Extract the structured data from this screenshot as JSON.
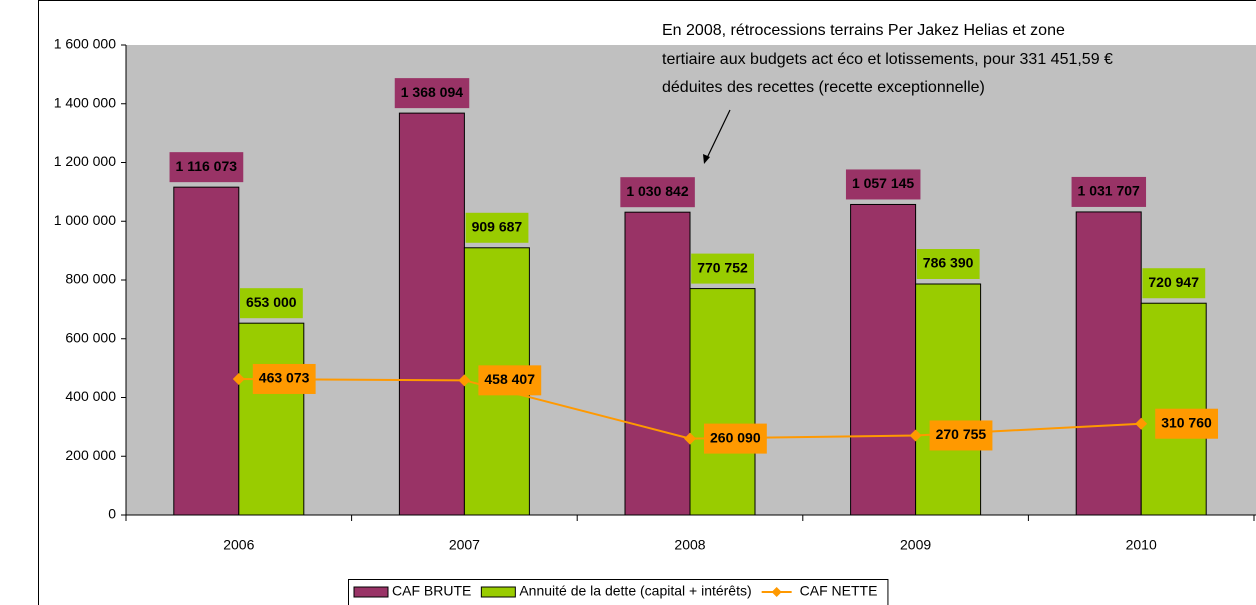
{
  "chart_data": {
    "type": "bar",
    "categories": [
      "2006",
      "2007",
      "2008",
      "2009",
      "2010"
    ],
    "series": [
      {
        "name": "CAF BRUTE",
        "color": "#993366",
        "type": "bar",
        "values": [
          1116073,
          1368094,
          1030842,
          1057145,
          1031707
        ],
        "value_labels": [
          "1 116 073",
          "1 368 094",
          "1 030 842",
          "1 057 145",
          "1 031 707"
        ]
      },
      {
        "name": "Annuité de la dette (capital + intérêts)",
        "color": "#99cc00",
        "type": "bar",
        "values": [
          653000,
          909687,
          770752,
          786390,
          720947
        ],
        "value_labels": [
          "653 000",
          "909 687",
          "770 752",
          "786 390",
          "720 947"
        ]
      },
      {
        "name": "CAF NETTE",
        "color": "#ff9900",
        "type": "line",
        "values": [
          463073,
          458407,
          260090,
          270755,
          310760
        ],
        "value_labels": [
          "463 073",
          "458 407",
          "260 090",
          "270 755",
          "310 760"
        ]
      }
    ],
    "ylim": [
      0,
      1600000
    ],
    "yticks": [
      {
        "value": 0,
        "label": "0"
      },
      {
        "value": 200000,
        "label": "200 000"
      },
      {
        "value": 400000,
        "label": "400 000"
      },
      {
        "value": 600000,
        "label": "600 000"
      },
      {
        "value": 800000,
        "label": "800 000"
      },
      {
        "value": 1000000,
        "label": "1 000 000"
      },
      {
        "value": 1200000,
        "label": "1 200 000"
      },
      {
        "value": 1400000,
        "label": "1 400 000"
      },
      {
        "value": 1600000,
        "label": "1 600 000"
      }
    ],
    "grid": false,
    "legend": "bottom",
    "annotation": [
      "En 2008, rétrocessions terrains Per Jakez Helias et zone",
      "tertiaire aux budgets act éco et lotissements, pour 331 451,59 €",
      "déduites des recettes (recette exceptionnelle)"
    ]
  }
}
